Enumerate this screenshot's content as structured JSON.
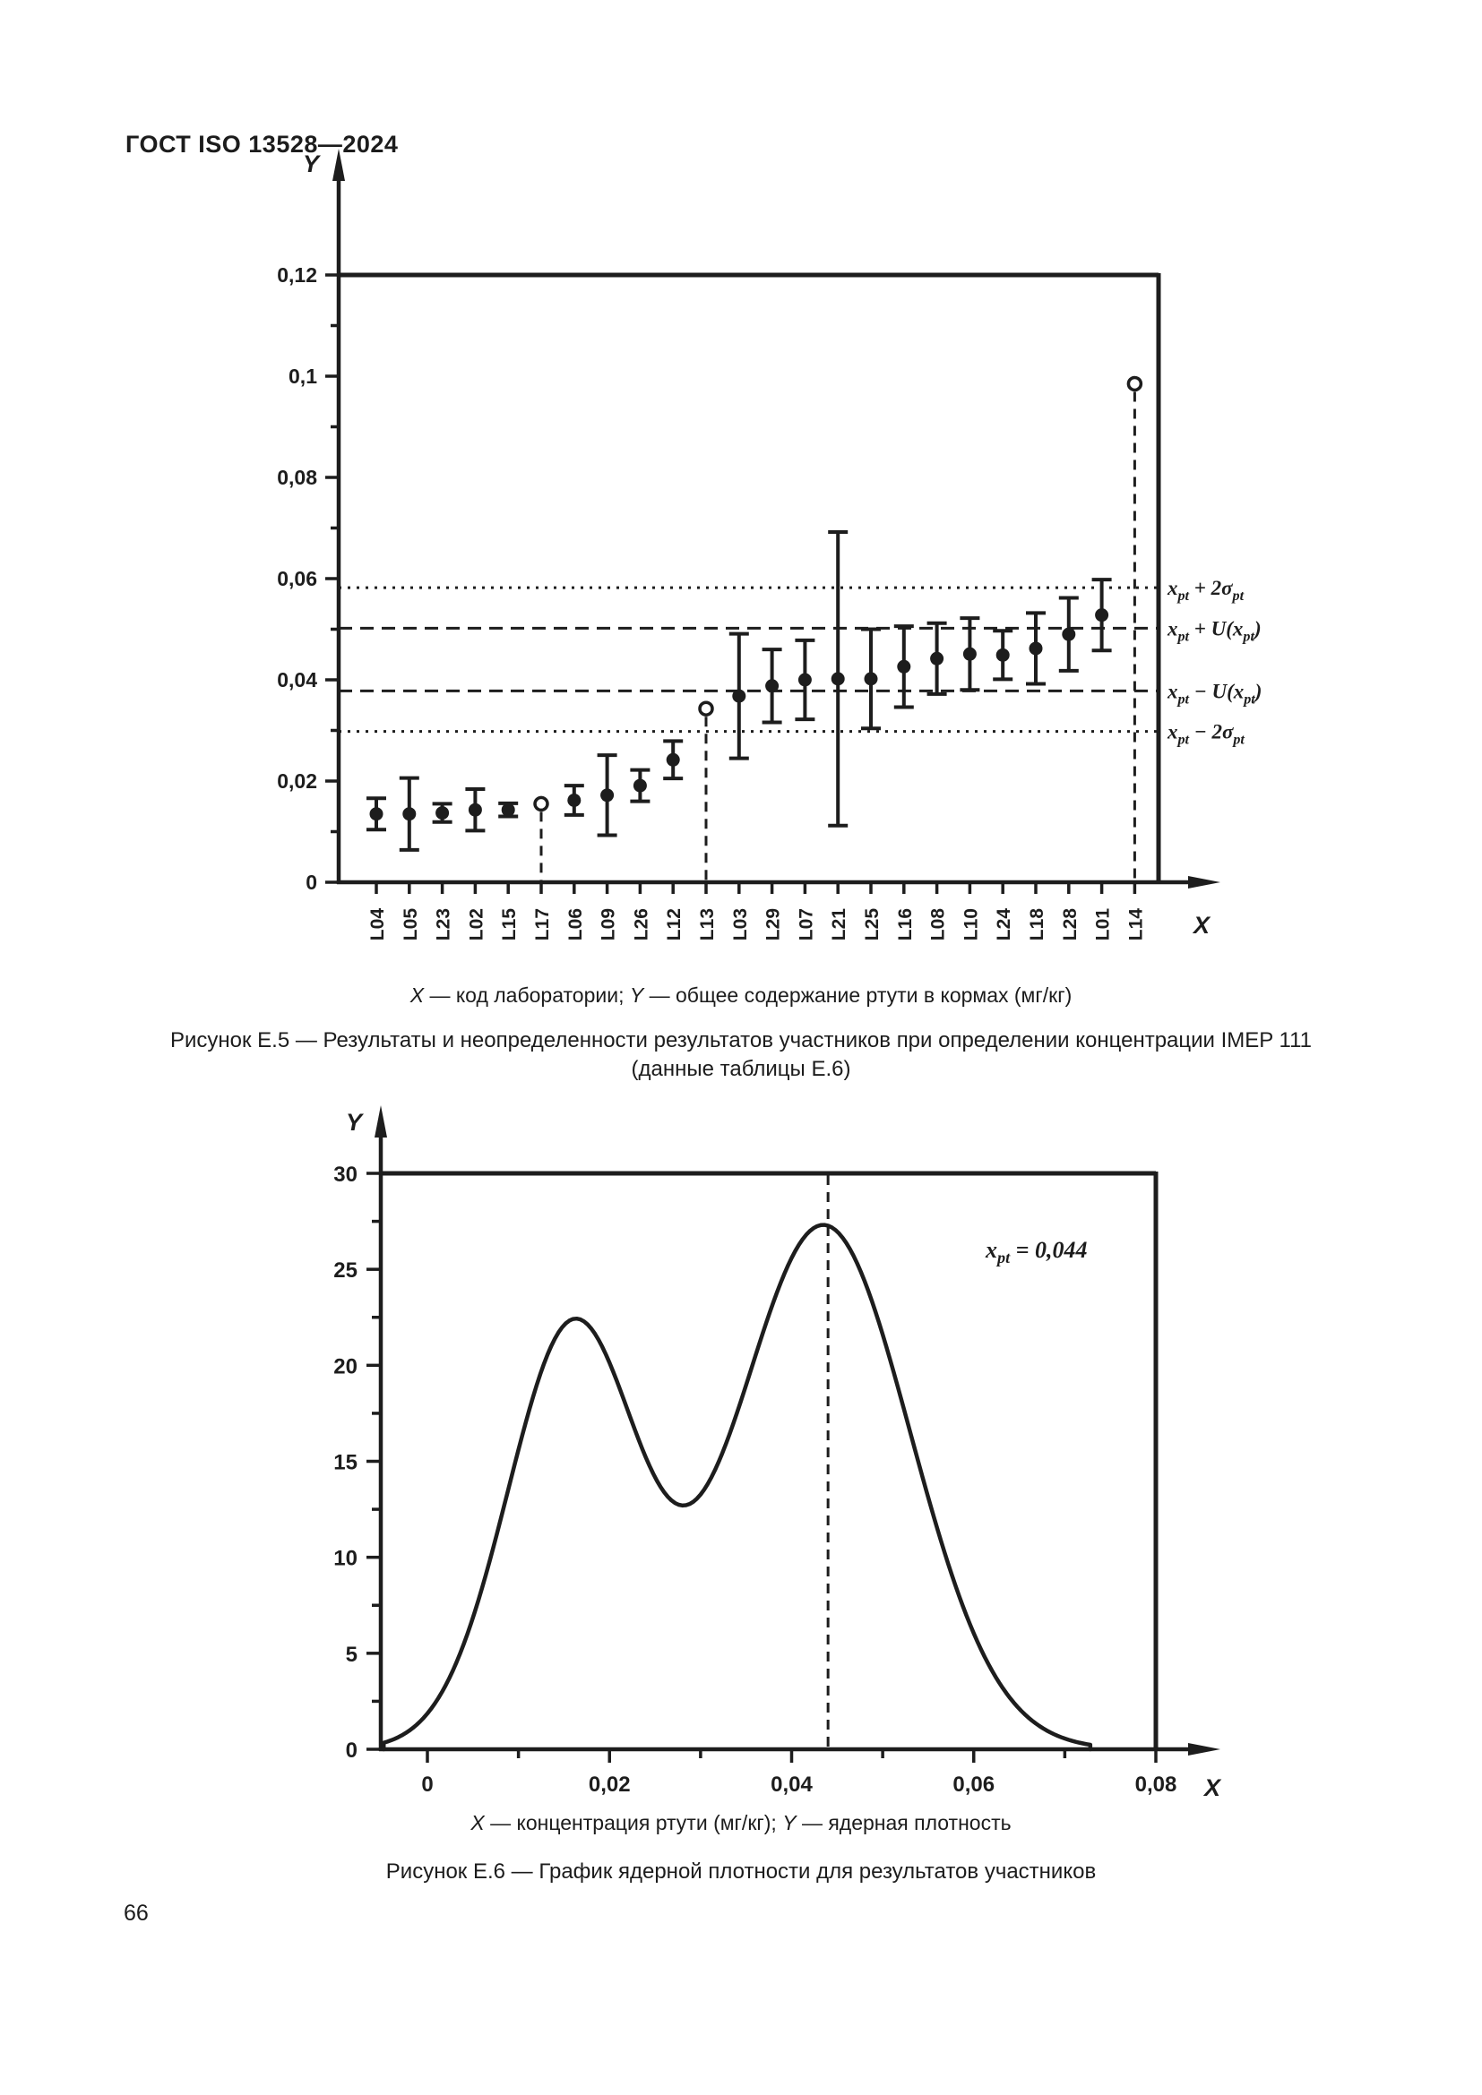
{
  "page": {
    "header_title": "ГОСТ ISO 13528—2024",
    "page_number": "66"
  },
  "figure_e5": {
    "legend_segments": [
      {
        "t": "X",
        "i": 1
      },
      {
        "t": " — код лаборатории; "
      },
      {
        "t": "Y",
        "i": 1
      },
      {
        "t": " — общее содержание ртути в кормах (мг/кг)"
      }
    ],
    "caption_title": "Рисунок Е.5 — Результаты и неопределенности результатов участников при определении концентрации IMEP 111",
    "caption_subtitle": "(данные таблицы Е.6)"
  },
  "figure_e6": {
    "legend_segments": [
      {
        "t": "X",
        "i": 1
      },
      {
        "t": " — концентрация ртути (мг/кг); "
      },
      {
        "t": "Y",
        "i": 1
      },
      {
        "t": " — ядерная плотность"
      }
    ],
    "caption_title": "Рисунок Е.6 — График ядерной плотности для результатов участников"
  },
  "chart_data": [
    {
      "type": "scatter",
      "subtype": "error-bar-results",
      "xlabel": "X",
      "ylabel": "Y",
      "ylim": [
        0,
        0.12
      ],
      "grid": false,
      "yticks": [
        {
          "v": 0,
          "label": "0"
        },
        {
          "v": 0.01
        },
        {
          "v": 0.02,
          "label": "0,02"
        },
        {
          "v": 0.03
        },
        {
          "v": 0.04,
          "label": "0,04"
        },
        {
          "v": 0.05
        },
        {
          "v": 0.06,
          "label": "0,06"
        },
        {
          "v": 0.07
        },
        {
          "v": 0.08,
          "label": "0,08"
        },
        {
          "v": 0.09
        },
        {
          "v": 0.1,
          "label": "0,1"
        },
        {
          "v": 0.11
        },
        {
          "v": 0.12,
          "label": "0,12"
        }
      ],
      "categories": [
        "L04",
        "L05",
        "L23",
        "L02",
        "L15",
        "L17",
        "L06",
        "L09",
        "L26",
        "L12",
        "L13",
        "L03",
        "L29",
        "L07",
        "L21",
        "L25",
        "L16",
        "L08",
        "L10",
        "L24",
        "L18",
        "L28",
        "L01",
        "L14"
      ],
      "points": [
        {
          "lab": "L04",
          "y": 0.0135,
          "u": 0.0031,
          "style": "filled"
        },
        {
          "lab": "L05",
          "y": 0.0135,
          "u": 0.0071,
          "style": "filled"
        },
        {
          "lab": "L23",
          "y": 0.0137,
          "u": 0.0018,
          "style": "filled"
        },
        {
          "lab": "L02",
          "y": 0.0143,
          "u": 0.0041,
          "style": "filled"
        },
        {
          "lab": "L15",
          "y": 0.0143,
          "u": 0.0013,
          "style": "filled"
        },
        {
          "lab": "L17",
          "y": 0.0155,
          "u": null,
          "style": "open",
          "dropline": true
        },
        {
          "lab": "L06",
          "y": 0.0162,
          "u": 0.0029,
          "style": "filled"
        },
        {
          "lab": "L09",
          "y": 0.0172,
          "u": 0.0079,
          "style": "filled"
        },
        {
          "lab": "L26",
          "y": 0.0191,
          "u": 0.0031,
          "style": "filled"
        },
        {
          "lab": "L12",
          "y": 0.0242,
          "u": 0.0037,
          "style": "filled"
        },
        {
          "lab": "L13",
          "y": 0.0343,
          "u": null,
          "style": "open",
          "dropline": true
        },
        {
          "lab": "L03",
          "y": 0.0368,
          "u": 0.0123,
          "style": "filled"
        },
        {
          "lab": "L29",
          "y": 0.0388,
          "u": 0.0072,
          "style": "filled"
        },
        {
          "lab": "L07",
          "y": 0.04,
          "u": 0.0078,
          "style": "filled"
        },
        {
          "lab": "L21",
          "y": 0.0402,
          "u": 0.029,
          "style": "filled"
        },
        {
          "lab": "L25",
          "y": 0.0402,
          "u": 0.0098,
          "style": "filled"
        },
        {
          "lab": "L16",
          "y": 0.0426,
          "u": 0.008,
          "style": "filled"
        },
        {
          "lab": "L08",
          "y": 0.0442,
          "u": 0.007,
          "style": "filled"
        },
        {
          "lab": "L10",
          "y": 0.0451,
          "u": 0.0071,
          "style": "filled"
        },
        {
          "lab": "L24",
          "y": 0.0449,
          "u": 0.0048,
          "style": "filled"
        },
        {
          "lab": "L18",
          "y": 0.0462,
          "u": 0.007,
          "style": "filled"
        },
        {
          "lab": "L28",
          "y": 0.049,
          "u": 0.0072,
          "style": "filled"
        },
        {
          "lab": "L01",
          "y": 0.0528,
          "u": 0.007,
          "style": "filled"
        },
        {
          "lab": "L14",
          "y": 0.0985,
          "u": null,
          "style": "open",
          "dropline": true
        }
      ],
      "ref_lines": [
        {
          "y": 0.0582,
          "style": "dotted",
          "label": "x_{pt} + 2σ_{pt}"
        },
        {
          "y": 0.0502,
          "style": "dashed",
          "label": "x_{pt} + U(x_{pt})"
        },
        {
          "y": 0.0378,
          "style": "dashed",
          "label": "x_{pt} − U(x_{pt})"
        },
        {
          "y": 0.0298,
          "style": "dotted",
          "label": "x_{pt} − 2σ_{pt}"
        }
      ],
      "legend_position": "right"
    },
    {
      "type": "line",
      "subtype": "kernel-density",
      "xlabel": "X",
      "ylabel": "Y",
      "xlim": [
        -0.005,
        0.08
      ],
      "ylim": [
        0,
        30
      ],
      "grid": false,
      "xticks": [
        {
          "v": 0,
          "label": "0"
        },
        {
          "v": 0.01
        },
        {
          "v": 0.02,
          "label": "0,02"
        },
        {
          "v": 0.03
        },
        {
          "v": 0.04,
          "label": "0,04"
        },
        {
          "v": 0.05
        },
        {
          "v": 0.06,
          "label": "0,06"
        },
        {
          "v": 0.07
        },
        {
          "v": 0.08,
          "label": "0,08"
        }
      ],
      "yticks": [
        {
          "v": 0,
          "label": "0"
        },
        {
          "v": 2.5
        },
        {
          "v": 5,
          "label": "5"
        },
        {
          "v": 7.5
        },
        {
          "v": 10,
          "label": "10"
        },
        {
          "v": 12.5
        },
        {
          "v": 15,
          "label": "15"
        },
        {
          "v": 17.5
        },
        {
          "v": 20,
          "label": "20"
        },
        {
          "v": 22.5
        },
        {
          "v": 25,
          "label": "25"
        },
        {
          "v": 27.5
        },
        {
          "v": 30,
          "label": "30"
        }
      ],
      "annotation": "x_{pt} = 0,044",
      "vline": {
        "x": 0.044,
        "style": "dashed"
      },
      "curve": {
        "components": [
          {
            "amp": 22.0,
            "mean": 0.016,
            "sd": 0.0072
          },
          {
            "amp": 27.3,
            "mean": 0.0435,
            "sd": 0.0095
          }
        ],
        "support": [
          -0.0048,
          0.0728
        ]
      },
      "key_points": {
        "left_peak": {
          "x": 0.016,
          "y": 22.0
        },
        "valley": {
          "x": 0.028,
          "y": 11.6
        },
        "right_peak": {
          "x": 0.0435,
          "y": 27.3
        },
        "xpt": 0.044
      }
    }
  ]
}
